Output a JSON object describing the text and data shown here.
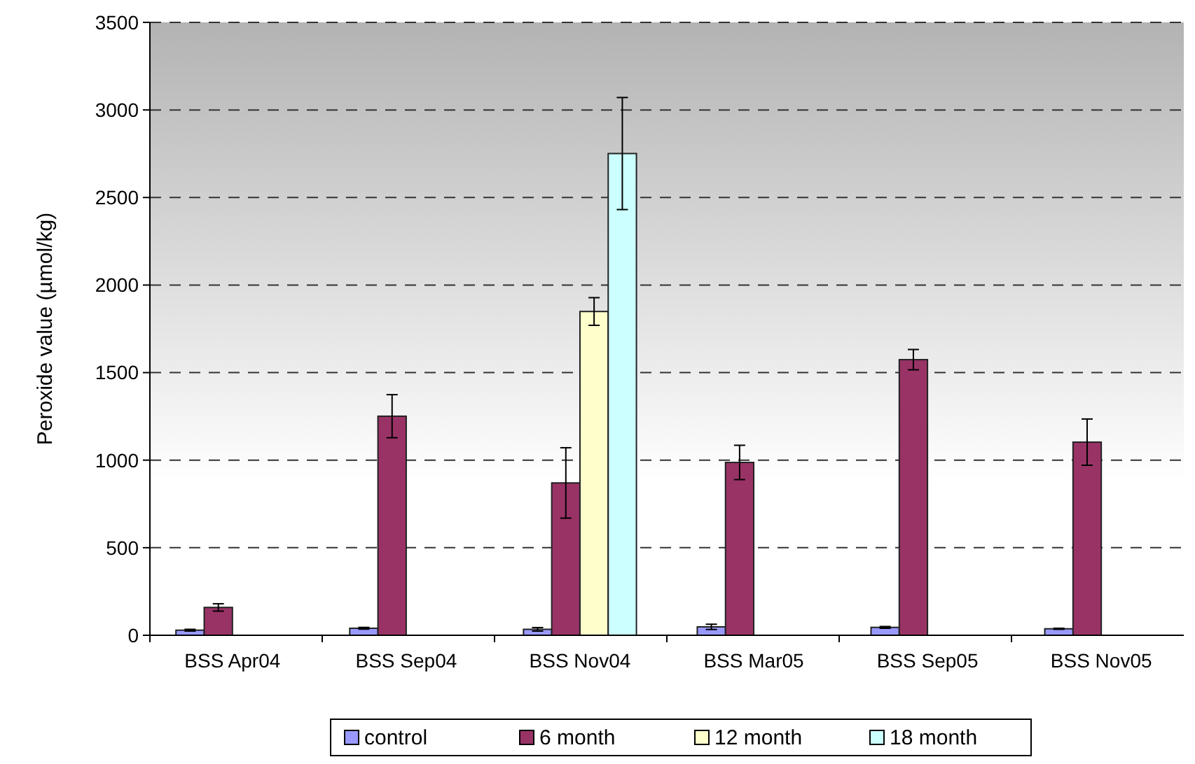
{
  "chart_data": {
    "type": "bar",
    "ylabel": "Peroxide value (µmol/kg)",
    "categories": [
      "BSS Apr04",
      "BSS Sep04",
      "BSS Nov04",
      "BSS Mar05",
      "BSS Sep05",
      "BSS Nov05"
    ],
    "series": [
      {
        "name": "control",
        "color": "#9999ff",
        "values": [
          29,
          40,
          34,
          48,
          45,
          37
        ],
        "errors": [
          5,
          5,
          10,
          15,
          5,
          3
        ]
      },
      {
        "name": "6 month",
        "color": "#993366",
        "values": [
          159,
          1251,
          870,
          987,
          1574,
          1103
        ],
        "errors": [
          21,
          123,
          201,
          98,
          58,
          132
        ]
      },
      {
        "name": "12 month",
        "color": "#ffffcc",
        "values": [
          null,
          null,
          1849,
          null,
          null,
          null
        ],
        "errors": [
          null,
          null,
          79,
          null,
          null,
          null
        ]
      },
      {
        "name": "18 month",
        "color": "#ccffff",
        "values": [
          null,
          null,
          2751,
          null,
          null,
          null
        ],
        "errors": [
          null,
          null,
          320,
          null,
          null,
          null
        ]
      }
    ],
    "ylim": [
      0,
      3500
    ],
    "yticks": [
      0,
      500,
      1000,
      1500,
      2000,
      2500,
      3000,
      3500
    ],
    "grid": "y",
    "legend": "bottom"
  }
}
